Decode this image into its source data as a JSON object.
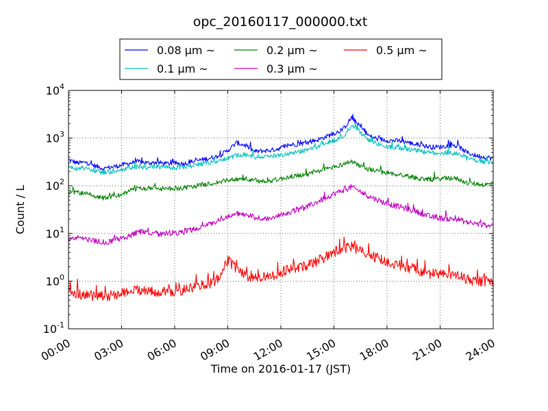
{
  "chart_data": {
    "type": "line",
    "title": "opc_20160117_000000.txt",
    "xlabel": "Time on 2016-01-17 (JST)",
    "ylabel": "Count / L",
    "y_scale": "log",
    "ylim": [
      0.1,
      10000
    ],
    "y_ticks": [
      {
        "base": "10",
        "exp": "-1",
        "value": 0.1
      },
      {
        "base": "10",
        "exp": "0",
        "value": 1
      },
      {
        "base": "10",
        "exp": "1",
        "value": 10
      },
      {
        "base": "10",
        "exp": "2",
        "value": 100
      },
      {
        "base": "10",
        "exp": "3",
        "value": 1000
      },
      {
        "base": "10",
        "exp": "4",
        "value": 10000
      }
    ],
    "xlim": [
      "00:00",
      "24:00"
    ],
    "x_ticks": [
      "00:00",
      "03:00",
      "06:00",
      "09:00",
      "12:00",
      "15:00",
      "18:00",
      "21:00",
      "24:00"
    ],
    "x": [
      "00:00",
      "00:30",
      "01:00",
      "01:30",
      "02:00",
      "02:30",
      "03:00",
      "03:30",
      "04:00",
      "04:30",
      "05:00",
      "05:30",
      "06:00",
      "06:30",
      "07:00",
      "07:30",
      "08:00",
      "08:30",
      "09:00",
      "09:30",
      "10:00",
      "10:30",
      "11:00",
      "11:30",
      "12:00",
      "12:30",
      "13:00",
      "13:30",
      "14:00",
      "14:30",
      "15:00",
      "15:30",
      "16:00",
      "16:30",
      "17:00",
      "17:30",
      "18:00",
      "18:30",
      "19:00",
      "19:30",
      "20:00",
      "20:30",
      "21:00",
      "21:30",
      "22:00",
      "22:30",
      "23:00",
      "23:30",
      "24:00"
    ],
    "grid": true,
    "legend_position": "top-center, above plot",
    "series": [
      {
        "name": "0.08 μm ~",
        "color": "#0000ff",
        "values": [
          350,
          300,
          310,
          260,
          230,
          250,
          270,
          300,
          320,
          300,
          310,
          290,
          300,
          290,
          320,
          350,
          380,
          420,
          550,
          800,
          700,
          520,
          540,
          560,
          620,
          720,
          750,
          800,
          900,
          1050,
          1250,
          1500,
          2700,
          1700,
          1100,
          950,
          900,
          880,
          850,
          750,
          700,
          650,
          650,
          700,
          680,
          500,
          430,
          400,
          380
        ]
      },
      {
        "name": "0.1 μm ~",
        "color": "#00bfbf",
        "values": [
          250,
          230,
          230,
          200,
          190,
          200,
          220,
          240,
          250,
          240,
          250,
          240,
          240,
          240,
          260,
          290,
          310,
          340,
          380,
          430,
          450,
          400,
          410,
          420,
          450,
          480,
          520,
          560,
          650,
          780,
          900,
          1050,
          1900,
          1300,
          900,
          750,
          650,
          620,
          600,
          560,
          520,
          480,
          480,
          500,
          480,
          380,
          340,
          320,
          310
        ]
      },
      {
        "name": "0.2 μm ~",
        "color": "#008000",
        "values": [
          75,
          70,
          70,
          60,
          55,
          60,
          65,
          80,
          90,
          85,
          88,
          85,
          88,
          90,
          95,
          105,
          110,
          120,
          130,
          140,
          140,
          125,
          125,
          130,
          140,
          155,
          165,
          175,
          190,
          220,
          250,
          280,
          330,
          260,
          220,
          200,
          185,
          175,
          165,
          150,
          140,
          135,
          140,
          145,
          140,
          115,
          110,
          105,
          110
        ]
      },
      {
        "name": "0.3 μm ~",
        "color": "#bf00bf",
        "values": [
          8,
          8,
          7.5,
          7,
          6.5,
          7,
          8,
          9,
          11,
          10,
          10,
          9.5,
          10,
          11,
          12,
          14,
          16,
          19,
          22,
          26,
          25,
          22,
          21,
          21,
          24,
          28,
          32,
          36,
          45,
          55,
          68,
          80,
          95,
          75,
          60,
          50,
          42,
          38,
          34,
          30,
          26,
          22,
          21,
          20,
          20,
          17,
          16,
          15,
          15
        ]
      },
      {
        "name": "0.5 μm ~",
        "color": "#ff0000",
        "values": [
          0.6,
          0.55,
          0.5,
          0.5,
          0.48,
          0.5,
          0.55,
          0.6,
          0.65,
          0.6,
          0.6,
          0.58,
          0.62,
          0.65,
          0.7,
          0.8,
          0.9,
          1.1,
          2.8,
          1.8,
          1.3,
          1.2,
          1.2,
          1.3,
          1.5,
          1.8,
          2.0,
          2.2,
          2.6,
          3.2,
          4.0,
          4.8,
          5.5,
          4.2,
          3.5,
          3.0,
          2.5,
          2.2,
          2.0,
          1.8,
          1.6,
          1.4,
          1.4,
          1.4,
          1.3,
          1.1,
          1.0,
          1.0,
          1.0
        ]
      }
    ]
  }
}
